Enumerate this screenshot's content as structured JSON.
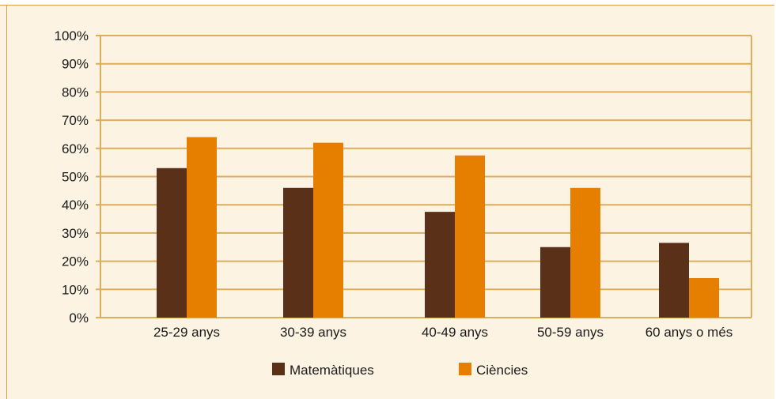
{
  "chart_data": {
    "type": "bar",
    "categories": [
      "25-29 anys",
      "30-39 anys",
      "40-49 anys",
      "50-59 anys",
      "60 anys o més"
    ],
    "series": [
      {
        "name": "Matemàtiques",
        "values": [
          53,
          46,
          37.5,
          25,
          26.5
        ],
        "color": "#5a3018"
      },
      {
        "name": "Ciències",
        "values": [
          64,
          62,
          57.5,
          46,
          14
        ],
        "color": "#e67e00"
      }
    ],
    "ylim": [
      0,
      100
    ],
    "yticks": [
      "0%",
      "10%",
      "20%",
      "30%",
      "40%",
      "50%",
      "60%",
      "70%",
      "80%",
      "90%",
      "100%"
    ],
    "grid": true,
    "legend_position": "bottom",
    "colors": {
      "background": "#fdf3e3",
      "grid": "#dcae5b",
      "frame": "#d9a24a"
    }
  }
}
